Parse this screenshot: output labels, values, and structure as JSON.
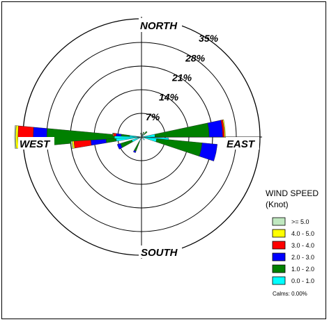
{
  "chart_data": {
    "type": "wind-rose",
    "title": "",
    "directions": {
      "north": "NORTH",
      "east": "EAST",
      "south": "SOUTH",
      "west": "WEST"
    },
    "rings": [
      {
        "value": 7,
        "label": "7%"
      },
      {
        "value": 14,
        "label": "14%"
      },
      {
        "value": 21,
        "label": "21%"
      },
      {
        "value": 28,
        "label": "28%"
      },
      {
        "value": 35,
        "label": "35%"
      }
    ],
    "rmax": 35,
    "legend": {
      "title_line1": "WIND SPEED",
      "title_line2": "(Knot)",
      "placement": "bottom-right",
      "calms": "Calms: 0.00%"
    },
    "bins": [
      {
        "label": "0.0 -  1.0",
        "color": "#00FFFF"
      },
      {
        "label": "1.0 -  2.0",
        "color": "#008000"
      },
      {
        "label": "2.0 -  3.0",
        "color": "#0000FF"
      },
      {
        "label": "3.0 -  4.0",
        "color": "#FF0000"
      },
      {
        "label": "4.0 -  5.0",
        "color": "#FFFF00"
      },
      {
        "label": ">=  5.0",
        "color": "#C0E8C0"
      }
    ],
    "petals": [
      {
        "angle": 270,
        "half_width": 5.2,
        "values": [
          8.0,
          20.0,
          4.0,
          4.5,
          0.7,
          0.3
        ]
      },
      {
        "angle": 263.5,
        "half_width": 3.0,
        "values": [
          7.5,
          3.0,
          4.5,
          5.0,
          0.5,
          0.4
        ]
      },
      {
        "angle": 275,
        "half_width": 3.0,
        "values": [
          3.5,
          2.5,
          1.5,
          0.8,
          0.2,
          0.1
        ]
      },
      {
        "angle": 84,
        "half_width": 6.0,
        "values": [
          4.0,
          16.0,
          4.0,
          0.5,
          0.3,
          0.0
        ]
      },
      {
        "angle": 102,
        "half_width": 6.5,
        "values": [
          4.5,
          13.5,
          4.5,
          0.0,
          0.0,
          0.0
        ]
      },
      {
        "angle": 94,
        "half_width": 2.0,
        "values": [
          8.0,
          0.0,
          0.0,
          0.0,
          0.0,
          0.0
        ]
      },
      {
        "angle": 247,
        "half_width": 6.0,
        "values": [
          3.0,
          3.5,
          1.0,
          0.0,
          0.0,
          0.0
        ]
      },
      {
        "angle": 205,
        "half_width": 4.0,
        "values": [
          1.5,
          3.0,
          0.5,
          0.0,
          0.0,
          0.0
        ]
      },
      {
        "angle": 45,
        "half_width": 5.0,
        "values": [
          1.0,
          1.2,
          0.0,
          0.0,
          0.0,
          0.0
        ]
      },
      {
        "angle": 25,
        "half_width": 4.0,
        "values": [
          0.8,
          0.8,
          0.0,
          0.0,
          0.0,
          0.0
        ]
      },
      {
        "angle": 350,
        "half_width": 4.0,
        "values": [
          0.7,
          0.5,
          0.0,
          0.0,
          0.0,
          0.0
        ]
      },
      {
        "angle": 135,
        "half_width": 5.0,
        "values": [
          1.2,
          0.0,
          0.0,
          0.0,
          0.0,
          0.0
        ]
      }
    ]
  }
}
